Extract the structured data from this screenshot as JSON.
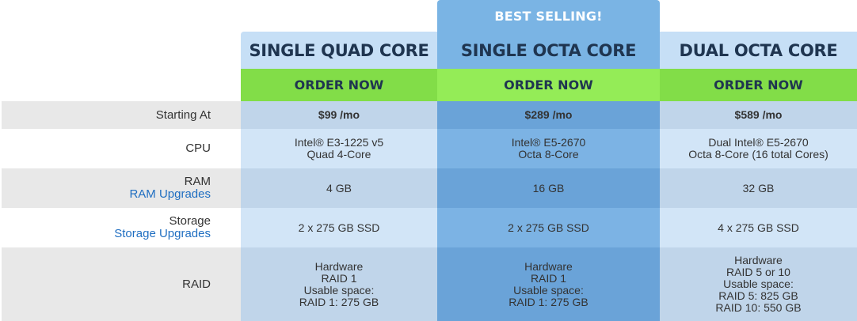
{
  "badge": "BEST SELLING!",
  "plans": [
    {
      "title": "SINGLE QUAD CORE",
      "order": "ORDER NOW"
    },
    {
      "title": "SINGLE OCTA CORE",
      "order": "ORDER NOW"
    },
    {
      "title": "DUAL OCTA CORE",
      "order": "ORDER NOW"
    }
  ],
  "labels": {
    "price": "Starting At",
    "cpu": "CPU",
    "ram": "RAM",
    "ram_link": "RAM Upgrades",
    "storage": "Storage",
    "storage_link": "Storage Upgrades",
    "raid": "RAID"
  },
  "rows": {
    "price": [
      "$99 /mo",
      "$289 /mo",
      "$589 /mo"
    ],
    "cpu": [
      [
        "Intel® E3-1225 v5",
        "Quad 4-Core"
      ],
      [
        "Intel® E5-2670",
        "Octa 8-Core"
      ],
      [
        "Dual Intel® E5-2670",
        "Octa 8-Core (16 total Cores)"
      ]
    ],
    "ram": [
      "4 GB",
      "16 GB",
      "32 GB"
    ],
    "storage": [
      "2 x 275 GB SSD",
      "2 x 275 GB SSD",
      "4 x 275 GB SSD"
    ],
    "raid": [
      [
        "Hardware",
        "RAID 1",
        "Usable space:",
        "RAID 1: 275 GB"
      ],
      [
        "Hardware",
        "RAID 1",
        "Usable space:",
        "RAID 1: 275 GB"
      ],
      [
        "Hardware",
        "RAID 5 or 10",
        "Usable space:",
        "RAID 5: 825 GB",
        "RAID 10: 550 GB"
      ]
    ]
  },
  "colors": {
    "header_light": "#c6dff6",
    "header_featured": "#7ab4e4",
    "order_green": "#82dd48",
    "order_green_featured": "#94ec57",
    "row_dark": "#c0d5ea",
    "row_light": "#d2e5f7",
    "featured_dark": "#6aa3d8",
    "featured_light": "#7cb3e4",
    "label_dark": "#e8e8e8",
    "link": "#1f6ec1"
  }
}
